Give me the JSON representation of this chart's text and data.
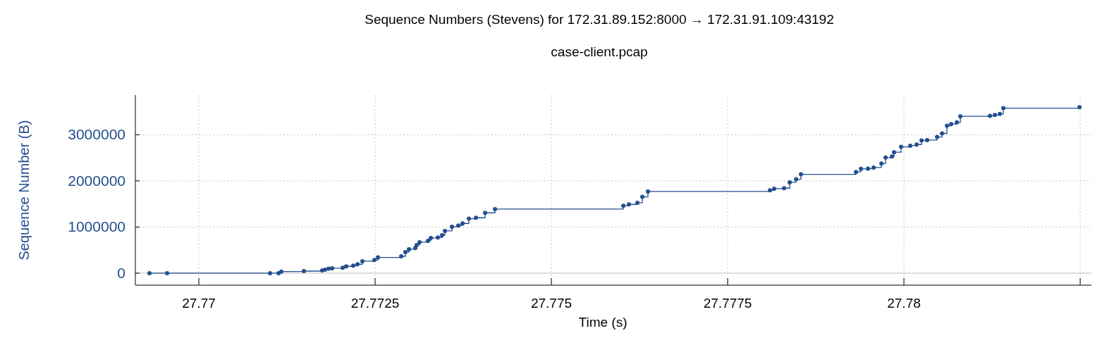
{
  "chart_data": {
    "type": "step",
    "title": "Sequence Numbers (Stevens) for 172.31.89.152:8000 → 172.31.91.109:43192",
    "subtitle": "case-client.pcap",
    "xlabel": "Time (s)",
    "ylabel": "Sequence Number (B)",
    "xlim": [
      27.7691,
      27.78266
    ],
    "xticks": [
      27.77,
      27.7725,
      27.775,
      27.7775,
      27.78,
      {
        "value": 27.7825,
        "label": null
      }
    ],
    "ylim": [
      -260000,
      3860000
    ],
    "yticks": [
      0,
      1000000,
      2000000,
      3000000
    ],
    "grid": true,
    "marker": "circle",
    "line_style": "solid",
    "series": [
      {
        "color": "#234f8e",
        "x": [
          27.7693,
          27.76955,
          27.77101,
          27.77113,
          27.77117,
          27.77149,
          27.77175,
          27.77179,
          27.77184,
          27.77189,
          27.77204,
          27.77209,
          27.77219,
          27.77225,
          27.77232,
          27.77249,
          27.77254,
          27.77287,
          27.77293,
          27.77298,
          27.77307,
          27.77309,
          27.77313,
          27.77325,
          27.77329,
          27.77339,
          27.77345,
          27.77349,
          27.77359,
          27.77368,
          27.77374,
          27.77383,
          27.77393,
          27.77406,
          27.7742,
          27.77602,
          27.7761,
          27.77622,
          27.77629,
          27.77637,
          27.7781,
          27.77816,
          27.7783,
          27.77838,
          27.77847,
          27.77854,
          27.77932,
          27.77939,
          27.77949,
          27.77957,
          27.77968,
          27.77974,
          27.77983,
          27.77986,
          27.77996,
          27.78009,
          27.78018,
          27.78025,
          27.78033,
          27.78047,
          27.78054,
          27.78061,
          27.78067,
          27.78075,
          27.7808,
          27.78122,
          27.78129,
          27.78136,
          27.78141,
          27.78249
        ],
        "values": [
          0,
          0,
          0,
          0,
          35000,
          45000,
          60000,
          76000,
          97000,
          107000,
          117000,
          148000,
          163000,
          194000,
          260000,
          285000,
          341000,
          366000,
          458000,
          519000,
          545000,
          611000,
          672000,
          702000,
          763000,
          774000,
          824000,
          916000,
          1008000,
          1033000,
          1079000,
          1181000,
          1201000,
          1308000,
          1389000,
          1461000,
          1491000,
          1527000,
          1654000,
          1771000,
          1796000,
          1832000,
          1842000,
          1969000,
          2035000,
          2142000,
          2194000,
          2260000,
          2264000,
          2290000,
          2377000,
          2504000,
          2530000,
          2621000,
          2737000,
          2763000,
          2788000,
          2874000,
          2885000,
          2951000,
          3028000,
          3196000,
          3232000,
          3267000,
          3400000,
          3409000,
          3430000,
          3450000,
          3577000,
          3598000
        ]
      }
    ]
  }
}
